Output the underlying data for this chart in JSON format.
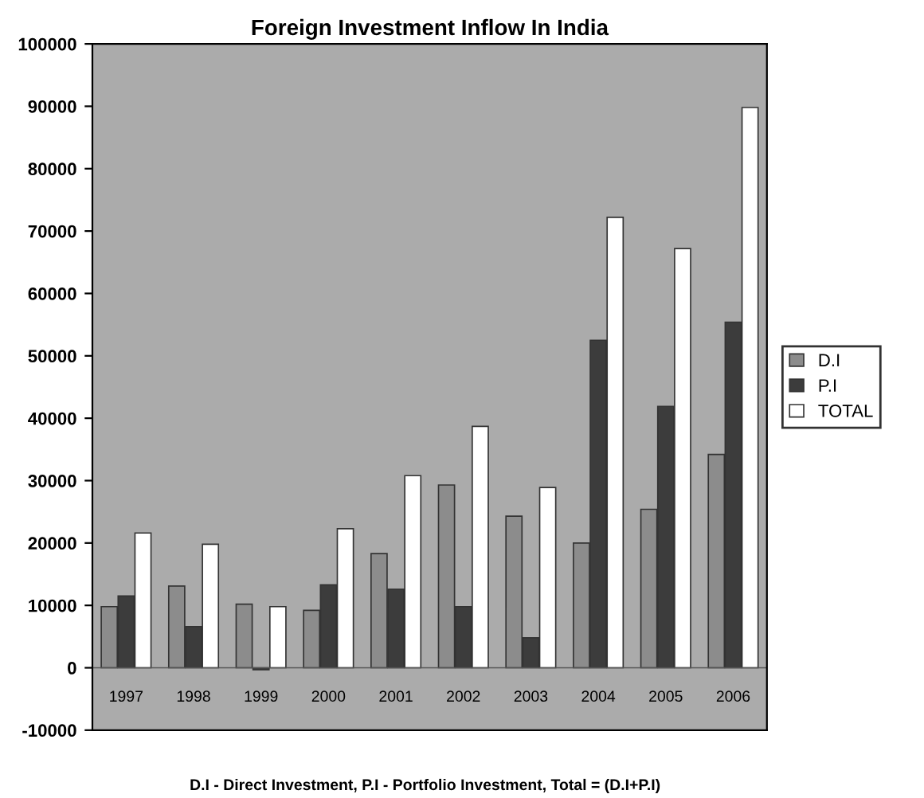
{
  "chart_data": {
    "type": "bar",
    "title": "Foreign Investment Inflow In India",
    "categories": [
      "1997",
      "1998",
      "1999",
      "2000",
      "2001",
      "2002",
      "2003",
      "2004",
      "2005",
      "2006"
    ],
    "series": [
      {
        "name": "D.I",
        "color": "#8c8c8c",
        "values": [
          9800,
          13100,
          10200,
          9200,
          18300,
          29300,
          24300,
          20000,
          25400,
          34200
        ]
      },
      {
        "name": "P.I",
        "color": "#3c3c3c",
        "values": [
          11500,
          6600,
          -300,
          13300,
          12600,
          9800,
          4800,
          52500,
          41900,
          55400
        ]
      },
      {
        "name": "TOTAL",
        "color": "#ffffff",
        "values": [
          21600,
          19800,
          9800,
          22300,
          30800,
          38700,
          28900,
          72200,
          67200,
          89800
        ]
      }
    ],
    "ylim": [
      -10000,
      100000
    ],
    "yticks": [
      -10000,
      0,
      10000,
      20000,
      30000,
      40000,
      50000,
      60000,
      70000,
      80000,
      90000,
      100000
    ],
    "grid": false,
    "legend": "right",
    "annotations": [
      "D.I - Direct Investment, P.I - Portfolio Investment, Total = (D.I+P.I)"
    ]
  }
}
